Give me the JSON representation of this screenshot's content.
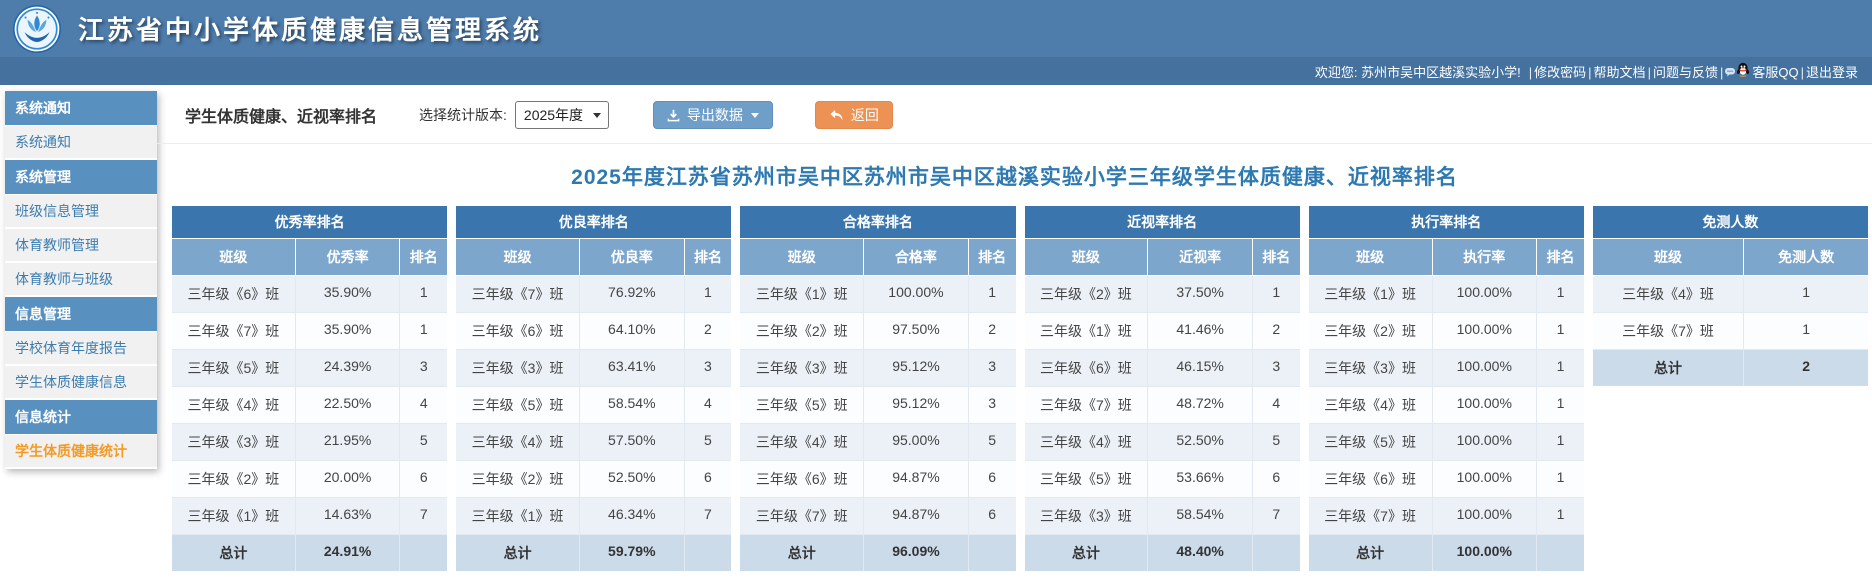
{
  "header": {
    "title": "江苏省中小学体质健康信息管理系统",
    "welcome": "欢迎您: 苏州市吴中区越溪实验小学!",
    "separator": "|",
    "links": [
      {
        "label": "修改密码"
      },
      {
        "label": "帮助文档"
      },
      {
        "label": "问题与反馈"
      },
      {
        "label": "客服QQ",
        "icon": "qq"
      },
      {
        "label": "退出登录"
      }
    ]
  },
  "sidebar": {
    "items": [
      {
        "type": "section",
        "label": "系统通知"
      },
      {
        "type": "item",
        "label": "系统通知"
      },
      {
        "type": "section",
        "label": "系统管理"
      },
      {
        "type": "item",
        "label": "班级信息管理"
      },
      {
        "type": "item",
        "label": "体育教师管理"
      },
      {
        "type": "item",
        "label": "体育教师与班级"
      },
      {
        "type": "section",
        "label": "信息管理"
      },
      {
        "type": "item",
        "label": "学校体育年度报告"
      },
      {
        "type": "item",
        "label": "学生体质健康信息"
      },
      {
        "type": "section",
        "label": "信息统计"
      },
      {
        "type": "item",
        "label": "学生体质健康统计",
        "active": true
      }
    ]
  },
  "toolbar": {
    "page_title": "学生体质健康、近视率排名",
    "version_label": "选择统计版本:",
    "version_value": "2025年度",
    "export_label": "导出数据",
    "back_label": "返回"
  },
  "main": {
    "title": "2025年度江苏省苏州市吴中区苏州市吴中区越溪实验小学三年级学生体质健康、近视率排名"
  },
  "tables": [
    {
      "title": "优秀率排名",
      "columns": [
        "班级",
        "优秀率",
        "排名"
      ],
      "rows": [
        [
          "三年级《6》班",
          "35.90%",
          "1"
        ],
        [
          "三年级《7》班",
          "35.90%",
          "1"
        ],
        [
          "三年级《5》班",
          "24.39%",
          "3"
        ],
        [
          "三年级《4》班",
          "22.50%",
          "4"
        ],
        [
          "三年级《3》班",
          "21.95%",
          "5"
        ],
        [
          "三年级《2》班",
          "20.00%",
          "6"
        ],
        [
          "三年级《1》班",
          "14.63%",
          "7"
        ]
      ],
      "total": [
        "总计",
        "24.91%",
        ""
      ]
    },
    {
      "title": "优良率排名",
      "columns": [
        "班级",
        "优良率",
        "排名"
      ],
      "rows": [
        [
          "三年级《7》班",
          "76.92%",
          "1"
        ],
        [
          "三年级《6》班",
          "64.10%",
          "2"
        ],
        [
          "三年级《3》班",
          "63.41%",
          "3"
        ],
        [
          "三年级《5》班",
          "58.54%",
          "4"
        ],
        [
          "三年级《4》班",
          "57.50%",
          "5"
        ],
        [
          "三年级《2》班",
          "52.50%",
          "6"
        ],
        [
          "三年级《1》班",
          "46.34%",
          "7"
        ]
      ],
      "total": [
        "总计",
        "59.79%",
        ""
      ]
    },
    {
      "title": "合格率排名",
      "columns": [
        "班级",
        "合格率",
        "排名"
      ],
      "rows": [
        [
          "三年级《1》班",
          "100.00%",
          "1"
        ],
        [
          "三年级《2》班",
          "97.50%",
          "2"
        ],
        [
          "三年级《3》班",
          "95.12%",
          "3"
        ],
        [
          "三年级《5》班",
          "95.12%",
          "3"
        ],
        [
          "三年级《4》班",
          "95.00%",
          "5"
        ],
        [
          "三年级《6》班",
          "94.87%",
          "6"
        ],
        [
          "三年级《7》班",
          "94.87%",
          "6"
        ]
      ],
      "total": [
        "总计",
        "96.09%",
        ""
      ]
    },
    {
      "title": "近视率排名",
      "columns": [
        "班级",
        "近视率",
        "排名"
      ],
      "rows": [
        [
          "三年级《2》班",
          "37.50%",
          "1"
        ],
        [
          "三年级《1》班",
          "41.46%",
          "2"
        ],
        [
          "三年级《6》班",
          "46.15%",
          "3"
        ],
        [
          "三年级《7》班",
          "48.72%",
          "4"
        ],
        [
          "三年级《4》班",
          "52.50%",
          "5"
        ],
        [
          "三年级《5》班",
          "53.66%",
          "6"
        ],
        [
          "三年级《3》班",
          "58.54%",
          "7"
        ]
      ],
      "total": [
        "总计",
        "48.40%",
        ""
      ]
    },
    {
      "title": "执行率排名",
      "columns": [
        "班级",
        "执行率",
        "排名"
      ],
      "rows": [
        [
          "三年级《1》班",
          "100.00%",
          "1"
        ],
        [
          "三年级《2》班",
          "100.00%",
          "1"
        ],
        [
          "三年级《3》班",
          "100.00%",
          "1"
        ],
        [
          "三年级《4》班",
          "100.00%",
          "1"
        ],
        [
          "三年级《5》班",
          "100.00%",
          "1"
        ],
        [
          "三年级《6》班",
          "100.00%",
          "1"
        ],
        [
          "三年级《7》班",
          "100.00%",
          "1"
        ]
      ],
      "total": [
        "总计",
        "100.00%",
        ""
      ]
    },
    {
      "title": "免测人数",
      "columns": [
        "班级",
        "免测人数"
      ],
      "rows": [
        [
          "三年级《4》班",
          "1"
        ],
        [
          "三年级《7》班",
          "1"
        ]
      ],
      "total": [
        "总计",
        "2"
      ]
    }
  ],
  "colors": {
    "header_blue": "#4e7cab",
    "welcome_bar_blue": "#44719e",
    "table_title_blue": "#3a76ad",
    "table_header_blue": "#7ca6cb",
    "total_row_bg": "#ccdbe9",
    "row_stripe": "#ebf1f7",
    "sidebar_section_blue": "#5890bf",
    "sidebar_link_blue": "#3d7dae",
    "active_item_orange": "#f59a23",
    "export_button_blue": "#6f9fc9",
    "back_button_orange": "#ec9254",
    "main_title_blue": "#2e79b0"
  }
}
